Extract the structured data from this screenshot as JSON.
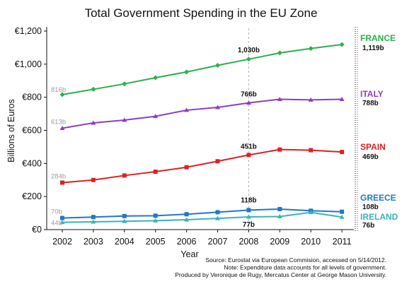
{
  "chart_data": {
    "type": "line",
    "title": "Total Government Spending in the EU Zone",
    "xlabel": "Year",
    "ylabel": "Billions of Euros",
    "x": [
      "2002",
      "2003",
      "2004",
      "2005",
      "2006",
      "2007",
      "2008",
      "2009",
      "2010",
      "2011"
    ],
    "y_ticks": [
      "€0",
      "€200",
      "€400",
      "€600",
      "€800",
      "€1,000",
      "€1,200"
    ],
    "ylim": [
      0,
      1200
    ],
    "grid": false,
    "reference_line_x": "2008",
    "series": [
      {
        "name": "FRANCE",
        "color": "#2bb04a",
        "marker": "diamond",
        "values": [
          816,
          848,
          881,
          918,
          953,
          993,
          1030,
          1068,
          1095,
          1119
        ],
        "start_label": "816b",
        "mid_label": "1,030b",
        "end_label": "1,119b"
      },
      {
        "name": "ITALY",
        "color": "#8a3fc0",
        "marker": "triangle",
        "values": [
          613,
          645,
          662,
          685,
          722,
          739,
          766,
          788,
          784,
          788
        ],
        "start_label": "613b",
        "mid_label": "766b",
        "end_label": "788b"
      },
      {
        "name": "SPAIN",
        "color": "#e02020",
        "marker": "square",
        "values": [
          284,
          300,
          327,
          350,
          377,
          413,
          451,
          484,
          480,
          469
        ],
        "start_label": "284b",
        "mid_label": "451b",
        "end_label": "469b"
      },
      {
        "name": "GREECE",
        "color": "#1f78c8",
        "marker": "square",
        "values": [
          70,
          76,
          82,
          84,
          93,
          105,
          118,
          124,
          114,
          108
        ],
        "start_label": "70b",
        "mid_label": "118b",
        "end_label": "108b"
      },
      {
        "name": "IRELAND",
        "color": "#3bb3b8",
        "marker": "triangle",
        "values": [
          44,
          47,
          50,
          54,
          60,
          68,
          77,
          79,
          104,
          76
        ],
        "start_label": "44b",
        "mid_label": "77b",
        "end_label": "76b"
      }
    ]
  },
  "source_lines": [
    "Source: Eurostat via European Commision, accessed on 5/14/2012.",
    "Note: Expenditure data accounts for all levels of government.",
    "Produced by Veronique de Rugy, Mercatus Center at George Mason University."
  ]
}
